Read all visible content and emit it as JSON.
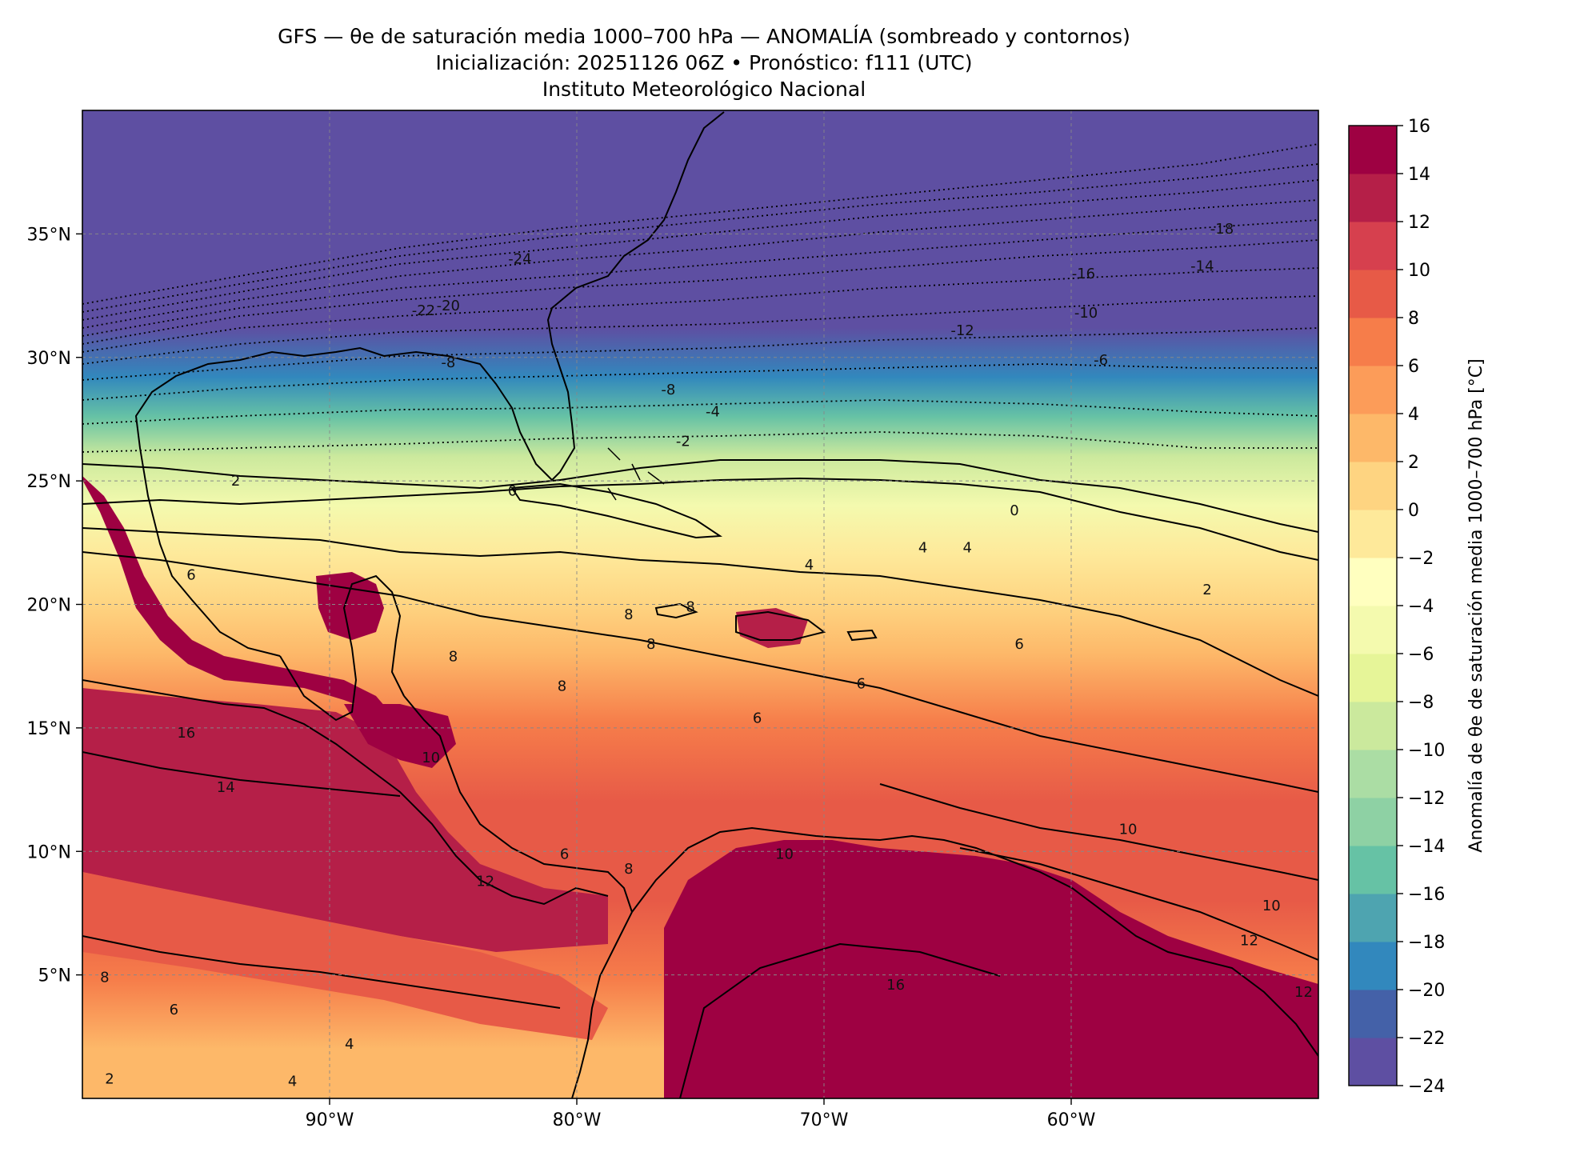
{
  "title": {
    "line1": "GFS — θe de saturación media 1000–700 hPa — ANOMALÍA (sombreado y contornos)",
    "line2": "Inicialización: 20251126 06Z   •   Pronóstico: f111 (UTC)",
    "line3": "Instituto Meteorológico Nacional"
  },
  "map": {
    "lon_range": [
      -100,
      -50
    ],
    "lat_range": [
      0,
      40
    ],
    "lat_ticks": [
      {
        "value": 35,
        "label": "35°N"
      },
      {
        "value": 30,
        "label": "30°N"
      },
      {
        "value": 25,
        "label": "25°N"
      },
      {
        "value": 20,
        "label": "20°N"
      },
      {
        "value": 15,
        "label": "15°N"
      },
      {
        "value": 10,
        "label": "10°N"
      },
      {
        "value": 5,
        "label": "5°N"
      }
    ],
    "lon_ticks": [
      {
        "value": -90,
        "label": "90°W"
      },
      {
        "value": -80,
        "label": "80°W"
      },
      {
        "value": -70,
        "label": "70°W"
      },
      {
        "value": -60,
        "label": "60°W"
      }
    ],
    "gridlines": true,
    "contour_labels": [
      {
        "text": "-24",
        "lon": -82.3,
        "lat": 34.0
      },
      {
        "text": "-22",
        "lon": -86.2,
        "lat": 31.9
      },
      {
        "text": "-20",
        "lon": -85.2,
        "lat": 32.1
      },
      {
        "text": "-18",
        "lon": -53.9,
        "lat": 35.2
      },
      {
        "text": "-16",
        "lon": -59.5,
        "lat": 33.4
      },
      {
        "text": "-14",
        "lon": -54.7,
        "lat": 33.7
      },
      {
        "text": "-12",
        "lon": -64.4,
        "lat": 31.1
      },
      {
        "text": "-10",
        "lon": -59.4,
        "lat": 31.8
      },
      {
        "text": "-8",
        "lon": -85.2,
        "lat": 29.8
      },
      {
        "text": "-8",
        "lon": -76.3,
        "lat": 28.7
      },
      {
        "text": "-6",
        "lon": -58.8,
        "lat": 29.9
      },
      {
        "text": "-4",
        "lon": -74.5,
        "lat": 27.8
      },
      {
        "text": "-2",
        "lon": -75.7,
        "lat": 26.6
      },
      {
        "text": "2",
        "lon": -93.8,
        "lat": 25.0
      },
      {
        "text": "0",
        "lon": -82.6,
        "lat": 24.6
      },
      {
        "text": "0",
        "lon": -62.3,
        "lat": 23.8
      },
      {
        "text": "4",
        "lon": -66.0,
        "lat": 22.3
      },
      {
        "text": "4",
        "lon": -64.2,
        "lat": 22.3
      },
      {
        "text": "6",
        "lon": -95.6,
        "lat": 21.2
      },
      {
        "text": "4",
        "lon": -70.6,
        "lat": 21.6
      },
      {
        "text": "2",
        "lon": -54.5,
        "lat": 20.6
      },
      {
        "text": "8",
        "lon": -77.9,
        "lat": 19.6
      },
      {
        "text": "8",
        "lon": -75.4,
        "lat": 19.9
      },
      {
        "text": "8",
        "lon": -77.0,
        "lat": 18.4
      },
      {
        "text": "8",
        "lon": -85.0,
        "lat": 17.9
      },
      {
        "text": "8",
        "lon": -80.6,
        "lat": 16.7
      },
      {
        "text": "6",
        "lon": -62.1,
        "lat": 18.4
      },
      {
        "text": "6",
        "lon": -68.5,
        "lat": 16.8
      },
      {
        "text": "6",
        "lon": -72.7,
        "lat": 15.4
      },
      {
        "text": "16",
        "lon": -95.8,
        "lat": 14.8
      },
      {
        "text": "14",
        "lon": -94.2,
        "lat": 12.6
      },
      {
        "text": "10",
        "lon": -85.9,
        "lat": 13.8
      },
      {
        "text": "10",
        "lon": -71.6,
        "lat": 9.9
      },
      {
        "text": "10",
        "lon": -57.7,
        "lat": 10.9
      },
      {
        "text": "10",
        "lon": -51.9,
        "lat": 7.8
      },
      {
        "text": "6",
        "lon": -80.5,
        "lat": 9.9
      },
      {
        "text": "8",
        "lon": -77.9,
        "lat": 9.3
      },
      {
        "text": "12",
        "lon": -83.7,
        "lat": 8.8
      },
      {
        "text": "8",
        "lon": -99.1,
        "lat": 4.9
      },
      {
        "text": "6",
        "lon": -96.3,
        "lat": 3.6
      },
      {
        "text": "4",
        "lon": -89.2,
        "lat": 2.2
      },
      {
        "text": "2",
        "lon": -98.9,
        "lat": 0.8
      },
      {
        "text": "4",
        "lon": -91.5,
        "lat": 0.7
      },
      {
        "text": "16",
        "lon": -67.1,
        "lat": 4.6
      },
      {
        "text": "12",
        "lon": -52.8,
        "lat": 6.4
      },
      {
        "text": "12",
        "lon": -50.6,
        "lat": 4.3
      }
    ]
  },
  "colorbar": {
    "label": "Anomalía de θe de saturación media 1000–700 hPa [°C]",
    "range": [
      -24,
      16
    ],
    "ticks": [
      "16",
      "14",
      "12",
      "10",
      "8",
      "6",
      "4",
      "2",
      "0",
      "−2",
      "−4",
      "−6",
      "−8",
      "−10",
      "−12",
      "−14",
      "−16",
      "−18",
      "−20",
      "−22",
      "−24"
    ],
    "colors": [
      "#5e4fa2",
      "#4461a8",
      "#3288bd",
      "#4ea4b0",
      "#66c2a5",
      "#8ed1a4",
      "#abdda4",
      "#cbe99d",
      "#e6f598",
      "#f4faae",
      "#ffffbf",
      "#fee99a",
      "#fed481",
      "#fdb869",
      "#fc9c59",
      "#f67d4a",
      "#e75a47",
      "#d6404e",
      "#b51f48",
      "#9e0142"
    ]
  }
}
